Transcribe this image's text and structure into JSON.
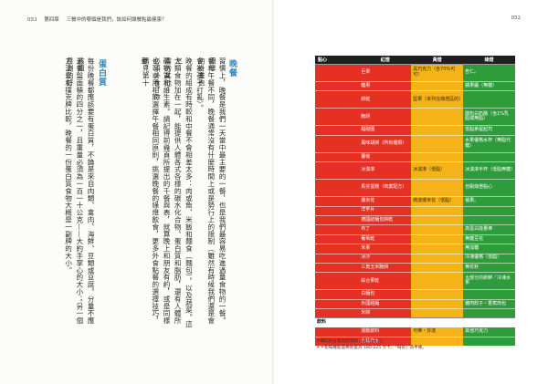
{
  "left_page": {
    "page_number": "053",
    "chapter": "第四章",
    "chapter_title": "三餐中的哪個是我們，該如何讓餐點最健康？",
    "section_title_1": "晚餐",
    "columns_1": [
      "習慣上，晚餐是我們一天當中最主要的一餐，也是我們最容易吃進過量食物的一餐。跟早",
      "餐和午餐不同，晚餐通常沒有什麼時間上或是勢行上的限制（雖然有時候我們還是會的計畫也",
      "會被孩子打亂）。",
      "晚餐的組成有時較和中餐不會相差太多：肉或魚、米飯和麵食（麵包），以及蔬菜。這三",
      "大類食物加在一起，能提供人體各式各樣的碳水化合物、蛋白質和脂肪，還有人體所需的其他",
      "礦物質和維生素。請記得前幾頁所提出的千餐與表，就算晚上和朋友有約，或是同樣必須外食，你",
      "也可以用相同選擇午餐相同原則，挑選晚餐的綠燈飲食，更多外食點餐的選擇技巧，請見第十",
      "章。"
    ],
    "section_title_2": "蛋白質",
    "columns_2": [
      "每份晚餐都應該要有蛋白質，不論是來自肉類、禽肉、海鮮、豆類或豆腐。分量不應該超",
      "過餐盤面積的四分之一，且重量必須為一百一十公克——大約手掌心的大小；另一個目測的好",
      "方法是和撲克牌比較，晚餐的一份蛋白質食物大概是一副牌的大小。"
    ]
  },
  "right_page": {
    "page_number": "052",
    "table": {
      "headers": [
        "點心",
        "紅燈",
        "黃燈",
        "綠燈"
      ],
      "rows": [
        {
          "c1": "",
          "c2": "巨果",
          "c3": "黑巧克力（含70%可可）",
          "c4": "杏仁。",
          "colors": [
            "red",
            "red",
            "yellow",
            "green"
          ],
          "tall": true
        },
        {
          "c1": "",
          "c2": "糖果",
          "c3": "",
          "c4": "蘋果醬（無糖）",
          "colors": [
            "red",
            "red",
            "yellow",
            "green"
          ]
        },
        {
          "c1": "",
          "c2": "餅乾",
          "c3": "堅果（未列在綠燈區的）",
          "c4": "",
          "colors": [
            "red",
            "red",
            "yellow",
            "green"
          ],
          "tall": true
        },
        {
          "c1": "",
          "c2": "脆餅",
          "c3": "",
          "c4": "酸奶白奶酪（含1%乳脂或無脂）",
          "colors": [
            "red",
            "red",
            "yellow",
            "green"
          ],
          "tall": true
        },
        {
          "c1": "",
          "c2": "甜甜圈",
          "c3": "",
          "c4": "低脂茅屋起司",
          "colors": [
            "red",
            "red",
            "yellow",
            "green"
          ]
        },
        {
          "c1": "",
          "c2": "風味胡餅（所有種類）",
          "c3": "",
          "c4": "水果優格水杯（無脂代糖）",
          "colors": [
            "red",
            "red",
            "yellow",
            "green"
          ],
          "tall": true
        },
        {
          "c1": "",
          "c2": "薯條",
          "c3": "",
          "c4": "",
          "colors": [
            "red",
            "red",
            "yellow",
            "green"
          ]
        },
        {
          "c1": "",
          "c2": "冰淇淋",
          "c3": "冰淇淋（低脂）",
          "c4": "冰淇淋半杯（低脂無糖）",
          "colors": [
            "red",
            "red",
            "yellow",
            "green"
          ],
          "tall": true
        },
        {
          "c1": "",
          "c2": "馬芬蛋糕（商業配方）",
          "c3": "",
          "c4": "自製綠燈點心",
          "colors": [
            "red",
            "red",
            "yellow",
            "green"
          ],
          "tall": true
        },
        {
          "c1": "",
          "c2": "爆米花",
          "c3": "微波爆米花（低脂）",
          "c4": "橘果。",
          "colors": [
            "red",
            "red",
            "yellow",
            "green"
          ]
        },
        {
          "c1": "",
          "c2": "洋芋片",
          "c3": "",
          "c4": "",
          "colors": [
            "red",
            "red",
            "yellow",
            "green"
          ]
        },
        {
          "c1": "",
          "c2": "德國結麵包餅乾",
          "c3": "",
          "c4": "",
          "colors": [
            "red",
            "red",
            "yellow",
            "green"
          ]
        },
        {
          "c1": "",
          "c2": "布丁",
          "c3": "",
          "c4": "高蛋白能量棒",
          "colors": [
            "red",
            "red",
            "yellow",
            "green"
          ]
        },
        {
          "c1": "",
          "c2": "葡萄乾",
          "c3": "",
          "c4": "無糖豆花",
          "colors": [
            "red",
            "red",
            "yellow",
            "green"
          ]
        },
        {
          "c1": "",
          "c2": "米果",
          "c3": "",
          "c4": "無加糖",
          "colors": [
            "red",
            "red",
            "yellow",
            "green"
          ]
        },
        {
          "c1": "",
          "c2": "冰沙",
          "c3": "",
          "c4": "冷凍優格（低脂）",
          "colors": [
            "red",
            "red",
            "yellow",
            "green"
          ]
        },
        {
          "c1": "",
          "c2": "三角玉米脆餅",
          "c3": "",
          "c4": "無花籽",
          "colors": [
            "red",
            "red",
            "yellow",
            "green"
          ]
        },
        {
          "c1": "",
          "c2": "綜合果乾",
          "c3": "",
          "c4": "大部分的新鮮／冷凍水果",
          "colors": [
            "red",
            "red",
            "yellow",
            "green"
          ],
          "tall": true
        },
        {
          "c1": "",
          "c2": "白麵包",
          "c3": "",
          "c4": "",
          "colors": [
            "red",
            "red",
            "yellow",
            "green"
          ]
        },
        {
          "c1": "",
          "c2": "外國甜麵",
          "c3": "",
          "c4": "雞肉餃子・香蕉肉包",
          "colors": [
            "red",
            "red",
            "yellow",
            "green"
          ]
        },
        {
          "c1": "",
          "c2": "米餅",
          "c3": "",
          "c4": "",
          "colors": [
            "red",
            "red",
            "yellow",
            "green"
          ]
        }
      ],
      "section_2": "飲料",
      "rows_2": [
        {
          "c1": "",
          "c2": "運動飲料",
          "c3": "可樂・芬達",
          "c4": "其他巧克力",
          "colors": [
            "red",
            "red",
            "yellow",
            "green"
          ]
        },
        {
          "c1": "",
          "c2": "含糖汽水",
          "c3": "",
          "c4": "",
          "colors": [
            "red",
            "red",
            "yellow",
            "green"
          ]
        }
      ]
    },
    "notes": [
      "＊攝取的分量有所限制（請見 P25）。",
      "＊＊對每種能量棒熱量為 180-225 大卡，「每份」為半條。"
    ]
  }
}
